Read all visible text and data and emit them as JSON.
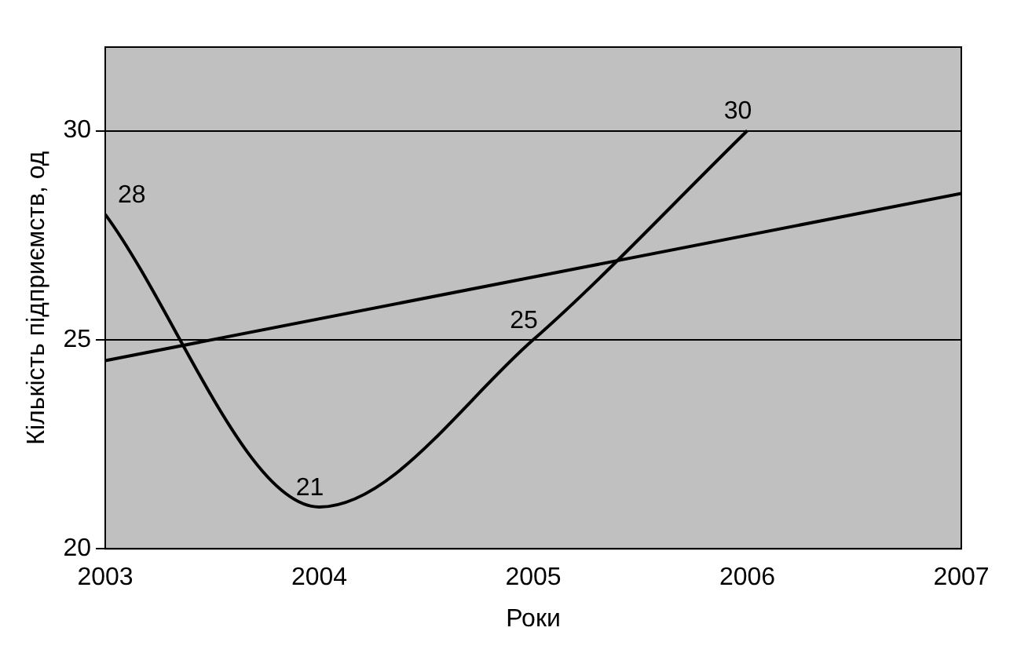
{
  "chart_data": {
    "type": "line",
    "xlabel": "Роки",
    "ylabel": "Кількість підприємств, од",
    "xlim": [
      2003,
      2007
    ],
    "xticks": [
      2003,
      2004,
      2005,
      2006,
      2007
    ],
    "ylim": [
      20,
      32
    ],
    "yticks": [
      20,
      25,
      30
    ],
    "grid": "y",
    "legend": false,
    "marker": "none",
    "series": [
      {
        "color": "#000000",
        "x": [
          2003,
          2004,
          2005,
          2006
        ],
        "values": [
          28,
          21,
          25,
          30
        ],
        "value_labels": [
          "28",
          "21",
          "25",
          "30"
        ]
      },
      {
        "color": "#000000",
        "x": [
          2003,
          2007
        ],
        "values": [
          24.5,
          28.5
        ]
      }
    ]
  }
}
